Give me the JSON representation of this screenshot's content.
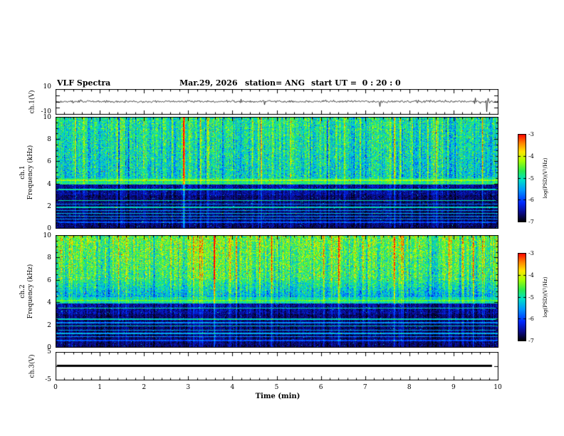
{
  "header": {
    "title": "VLF Spectra",
    "date": "Mar.29, 2026",
    "station": "station= ANG",
    "start_ut": "start UT =  0 : 20 : 0"
  },
  "axes": {
    "ch1_wave": {
      "label": "ch.1(V)",
      "tick_labels": [
        10,
        -10
      ]
    },
    "ch1_spec": {
      "label_line1": "ch.1",
      "label_line2": "Frequency (kHz)"
    },
    "ch2_spec": {
      "label_line1": "ch.2",
      "label_line2": "Frequency (kHz)"
    },
    "ch3_wave": {
      "label": "ch.3(V)",
      "tick_labels": [
        5,
        -5
      ]
    }
  },
  "chart_data": {
    "type": "multi-panel-spectrogram",
    "x_axis": {
      "label": "Time (min)",
      "range": [
        0,
        10
      ],
      "ticks": [
        0,
        1,
        2,
        3,
        4,
        5,
        6,
        7,
        8,
        9,
        10
      ],
      "minor_tick_step": 0.2
    },
    "colormap": [
      {
        "v": 0.0,
        "rgb": [
          0,
          0,
          0
        ]
      },
      {
        "v": 0.1,
        "rgb": [
          10,
          10,
          130
        ]
      },
      {
        "v": 0.22,
        "rgb": [
          0,
          40,
          255
        ]
      },
      {
        "v": 0.36,
        "rgb": [
          0,
          150,
          255
        ]
      },
      {
        "v": 0.48,
        "rgb": [
          0,
          225,
          200
        ]
      },
      {
        "v": 0.58,
        "rgb": [
          40,
          235,
          80
        ]
      },
      {
        "v": 0.7,
        "rgb": [
          170,
          255,
          0
        ]
      },
      {
        "v": 0.8,
        "rgb": [
          255,
          230,
          0
        ]
      },
      {
        "v": 0.9,
        "rgb": [
          255,
          130,
          0
        ]
      },
      {
        "v": 1.0,
        "rgb": [
          255,
          0,
          0
        ]
      }
    ],
    "colorbars": [
      {
        "label": "log(PSD)(V²/Hz)",
        "ticks": [
          -3,
          -4,
          -5,
          -6,
          -7
        ],
        "range": [
          -7,
          -3
        ]
      },
      {
        "label": "log(PSD)(V²/Hz)",
        "ticks": [
          -3,
          -4,
          -5,
          -6,
          -7
        ],
        "range": [
          -7,
          -3
        ]
      }
    ],
    "panels": [
      {
        "id": "ch1_wave",
        "type": "line",
        "ylabel": "ch.1(V)",
        "yrange": [
          -10,
          10
        ],
        "ytick_labels": [
          10,
          -10
        ],
        "ytick_marks": [
          -10,
          -5,
          0,
          5,
          10
        ],
        "noise_amp": 0.9,
        "seed": 101,
        "spikes": [
          {
            "t": 4.72,
            "v": -2.6
          },
          {
            "t": 7.32,
            "v": -4.0
          },
          {
            "t": 9.74,
            "v": -8.2
          },
          {
            "t": 9.78,
            "v": 2.6
          }
        ]
      },
      {
        "id": "ch1_spec",
        "type": "heatmap",
        "ylabel": "ch.1 Frequency (kHz)",
        "yrange": [
          0,
          10
        ],
        "yticks": [
          0,
          2,
          4,
          6,
          8,
          10
        ],
        "value_range": [
          -7,
          -3
        ],
        "seed": 2024,
        "regions": [
          {
            "f0": 4.55,
            "f1": 10,
            "base": -5.15,
            "grad": 0.25,
            "noise": 0.75,
            "streak": 0.95
          },
          {
            "f0": 3.95,
            "f1": 4.55,
            "base": -4.85,
            "grad": 0,
            "noise": 0.5,
            "streak": 0.55
          },
          {
            "f0": 2.95,
            "f1": 3.95,
            "base": -6.5,
            "grad": 0,
            "noise": 0.35,
            "streak": 0.45
          },
          {
            "f0": 0,
            "f1": 2.95,
            "base": -6.65,
            "grad": 0,
            "noise": 0.3,
            "streak": 0.4
          }
        ],
        "lines": [
          {
            "f": 4.3,
            "level": -4.2,
            "hw": 0.06
          },
          {
            "f": 4.05,
            "level": -4.7,
            "hw": 0.05
          },
          {
            "f": 3.5,
            "level": -5.0,
            "hw": 0.05
          },
          {
            "f": 2.5,
            "level": -5.0,
            "hw": 0.05
          },
          {
            "f": 2.2,
            "level": -5.6,
            "hw": 0.04
          },
          {
            "f": 1.9,
            "level": -5.1,
            "hw": 0.05
          },
          {
            "f": 1.6,
            "level": -5.5,
            "hw": 0.04
          },
          {
            "f": 1.35,
            "level": -5.3,
            "hw": 0.04
          },
          {
            "f": 1.1,
            "level": -5.5,
            "hw": 0.04
          },
          {
            "f": 0.85,
            "level": -5.6,
            "hw": 0.04
          },
          {
            "f": 0.55,
            "level": -5.9,
            "hw": 0.04
          }
        ]
      },
      {
        "id": "ch2_spec",
        "type": "heatmap",
        "ylabel": "ch.2 Frequency (kHz)",
        "yrange": [
          0,
          10
        ],
        "yticks": [
          0,
          2,
          4,
          6,
          8,
          10
        ],
        "value_range": [
          -7,
          -3
        ],
        "seed": 777,
        "regions": [
          {
            "f0": 6.0,
            "f1": 10,
            "base": -4.75,
            "grad": 0.3,
            "noise": 0.8,
            "streak": 1.0
          },
          {
            "f0": 4.5,
            "f1": 6.0,
            "base": -5.4,
            "grad": 0.55,
            "noise": 0.7,
            "streak": 0.85
          },
          {
            "f0": 3.9,
            "f1": 4.5,
            "base": -5.0,
            "grad": 0,
            "noise": 0.5,
            "streak": 0.55
          },
          {
            "f0": 2.95,
            "f1": 3.9,
            "base": -6.5,
            "grad": 0,
            "noise": 0.35,
            "streak": 0.45
          },
          {
            "f0": 0,
            "f1": 2.95,
            "base": -6.65,
            "grad": 0,
            "noise": 0.3,
            "streak": 0.4
          }
        ],
        "lines": [
          {
            "f": 4.2,
            "level": -4.5,
            "hw": 0.06
          },
          {
            "f": 3.5,
            "level": -5.0,
            "hw": 0.05
          },
          {
            "f": 2.5,
            "level": -5.1,
            "hw": 0.05
          },
          {
            "f": 2.2,
            "level": -5.6,
            "hw": 0.04
          },
          {
            "f": 1.9,
            "level": -5.2,
            "hw": 0.05
          },
          {
            "f": 1.55,
            "level": -5.4,
            "hw": 0.04
          },
          {
            "f": 1.25,
            "level": -5.4,
            "hw": 0.04
          },
          {
            "f": 0.95,
            "level": -5.6,
            "hw": 0.04
          },
          {
            "f": 0.6,
            "level": -5.9,
            "hw": 0.04
          }
        ]
      },
      {
        "id": "ch3_wave",
        "type": "line",
        "ylabel": "ch.3(V)",
        "yrange": [
          -5,
          5
        ],
        "ytick_labels": [
          5,
          -5
        ],
        "ytick_marks": [
          -5,
          0,
          5
        ],
        "constant_value": 0,
        "t_start": 0.03,
        "t_end": 9.87,
        "line_width": 3
      }
    ]
  }
}
